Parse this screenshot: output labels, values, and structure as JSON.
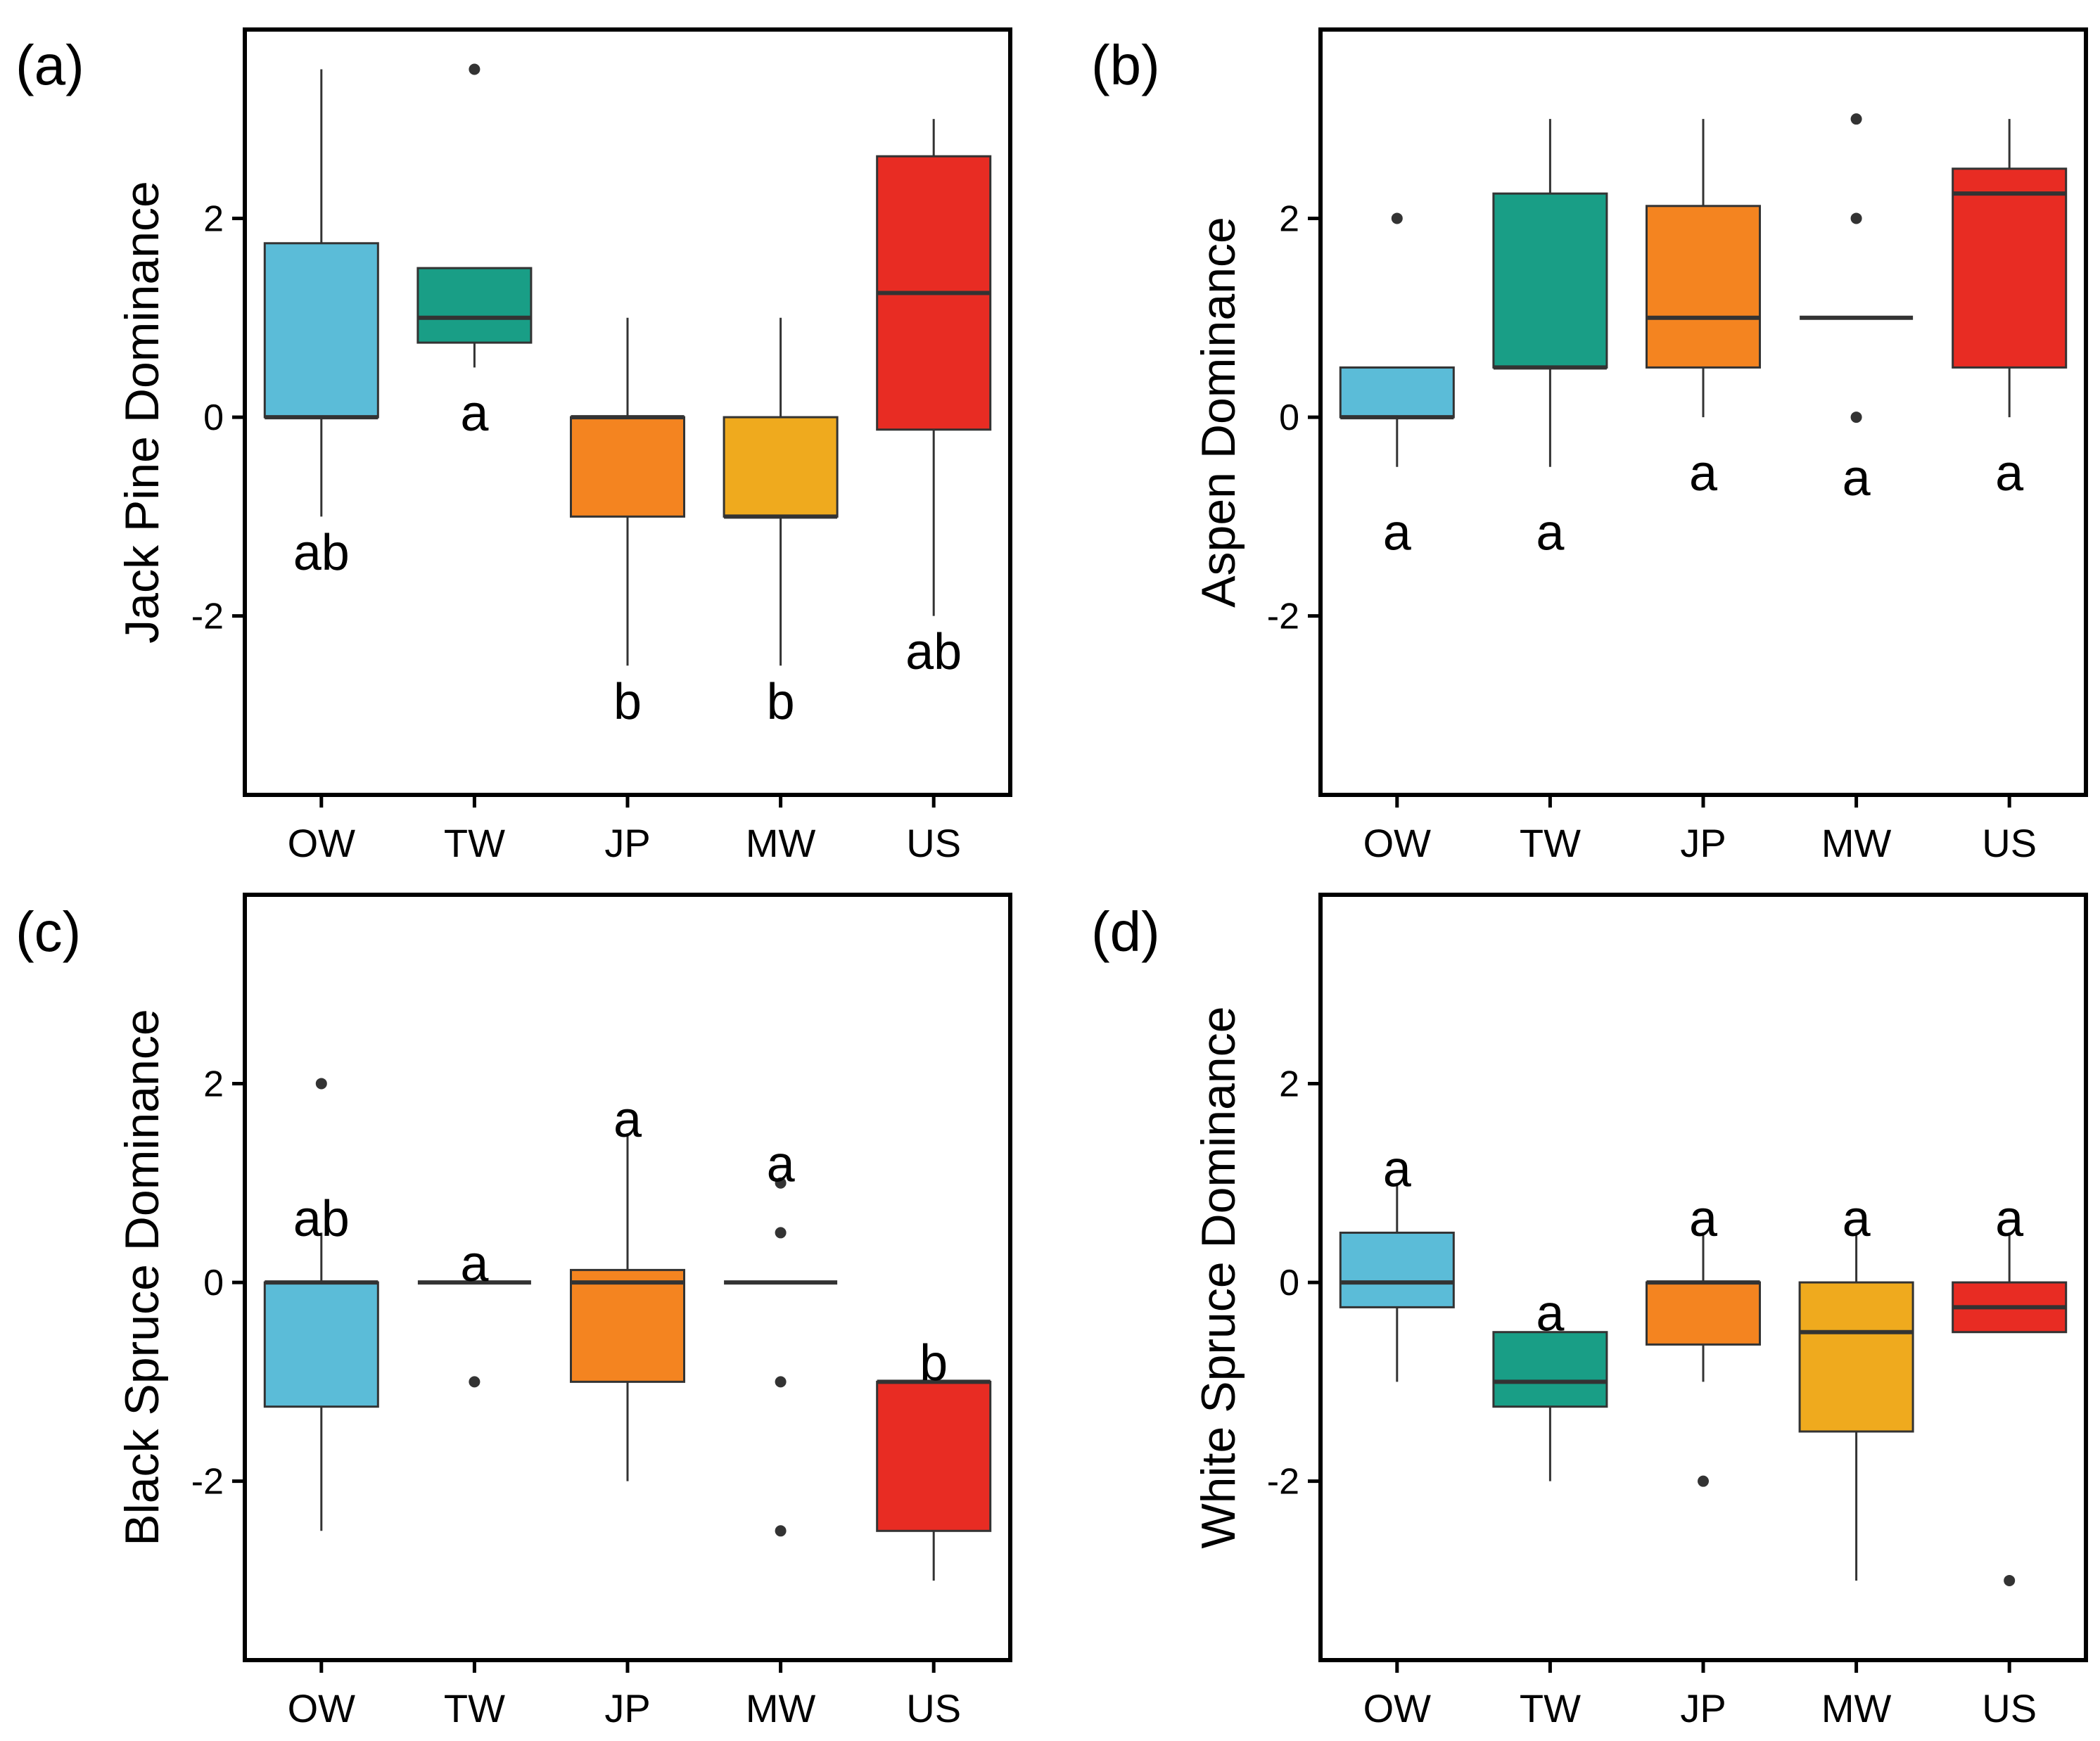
{
  "figure": {
    "categories": [
      "OW",
      "TW",
      "JP",
      "MW",
      "US"
    ],
    "colors": {
      "OW": "#5bbcd8",
      "TW": "#199e86",
      "JP": "#f48420",
      "MW": "#efaa1e",
      "US": "#e82c23"
    },
    "y_ticks": [
      -2,
      0,
      2
    ],
    "ylim": [
      -3.8,
      3.9
    ]
  },
  "chart_data": [
    {
      "panel": "(a)",
      "type": "box",
      "ylabel": "Jack Pine Dominance",
      "boxes": [
        {
          "category": "OW",
          "q1": 0,
          "median": 0,
          "q3": 1.75,
          "whisker_low": -1,
          "whisker_high": 3.5,
          "outliers": [],
          "letter": "ab",
          "letter_y": -1.35
        },
        {
          "category": "TW",
          "q1": 0.75,
          "median": 1,
          "q3": 1.5,
          "whisker_low": 0.5,
          "whisker_high": 1.5,
          "outliers": [
            3.5
          ],
          "letter": "a",
          "letter_y": 0.05
        },
        {
          "category": "JP",
          "q1": -1,
          "median": 0,
          "q3": 0,
          "whisker_low": -2.5,
          "whisker_high": 1,
          "outliers": [],
          "letter": "b",
          "letter_y": -2.85
        },
        {
          "category": "MW",
          "q1": -1,
          "median": -1,
          "q3": 0,
          "whisker_low": -2.5,
          "whisker_high": 1,
          "outliers": [],
          "letter": "b",
          "letter_y": -2.85
        },
        {
          "category": "US",
          "q1": -0.125,
          "median": 1.25,
          "q3": 2.625,
          "whisker_low": -2,
          "whisker_high": 3,
          "outliers": [],
          "letter": "ab",
          "letter_y": -2.35
        }
      ]
    },
    {
      "panel": "(b)",
      "type": "box",
      "ylabel": "Aspen Dominance",
      "boxes": [
        {
          "category": "OW",
          "q1": 0,
          "median": 0,
          "q3": 0.5,
          "whisker_low": -0.5,
          "whisker_high": 0.5,
          "outliers": [
            2
          ],
          "letter": "a",
          "letter_y": -1.15
        },
        {
          "category": "TW",
          "q1": 0.5,
          "median": 0.5,
          "q3": 2.25,
          "whisker_low": -0.5,
          "whisker_high": 3,
          "outliers": [],
          "letter": "a",
          "letter_y": -1.15
        },
        {
          "category": "JP",
          "q1": 0.5,
          "median": 1,
          "q3": 2.125,
          "whisker_low": 0,
          "whisker_high": 3,
          "outliers": [],
          "letter": "a",
          "letter_y": -0.55
        },
        {
          "category": "MW",
          "q1": 1,
          "median": 1,
          "q3": 1,
          "whisker_low": 1,
          "whisker_high": 1,
          "outliers": [
            3,
            2,
            0
          ],
          "letter": "a",
          "letter_y": -0.6
        },
        {
          "category": "US",
          "q1": 0.5,
          "median": 2.25,
          "q3": 2.5,
          "whisker_low": 0,
          "whisker_high": 3,
          "outliers": [],
          "letter": "a",
          "letter_y": -0.55
        }
      ]
    },
    {
      "panel": "(c)",
      "type": "box",
      "ylabel": "Black Spruce Dominance",
      "boxes": [
        {
          "category": "OW",
          "q1": -1.25,
          "median": 0,
          "q3": 0,
          "whisker_low": -2.5,
          "whisker_high": 0.5,
          "outliers": [
            2
          ],
          "letter": "ab",
          "letter_y": 0.65
        },
        {
          "category": "TW",
          "q1": 0,
          "median": 0,
          "q3": 0,
          "whisker_low": 0,
          "whisker_high": 0,
          "outliers": [
            -1
          ],
          "letter": "a",
          "letter_y": 0.2
        },
        {
          "category": "JP",
          "q1": -1,
          "median": 0,
          "q3": 0.125,
          "whisker_low": -2,
          "whisker_high": 1.5,
          "outliers": [],
          "letter": "a",
          "letter_y": 1.65
        },
        {
          "category": "MW",
          "q1": 0,
          "median": 0,
          "q3": 0,
          "whisker_low": 0,
          "whisker_high": 0,
          "outliers": [
            1,
            0.5,
            -1,
            -2.5
          ],
          "letter": "a",
          "letter_y": 1.2
        },
        {
          "category": "US",
          "q1": -2.5,
          "median": -1,
          "q3": -1,
          "whisker_low": -3,
          "whisker_high": -1,
          "outliers": [],
          "letter": "b",
          "letter_y": -0.8
        }
      ]
    },
    {
      "panel": "(d)",
      "type": "box",
      "ylabel": "White Spruce Dominance",
      "boxes": [
        {
          "category": "OW",
          "q1": -0.25,
          "median": 0,
          "q3": 0.5,
          "whisker_low": -1,
          "whisker_high": 1,
          "outliers": [],
          "letter": "a",
          "letter_y": 1.15
        },
        {
          "category": "TW",
          "q1": -1.25,
          "median": -1,
          "q3": -0.5,
          "whisker_low": -2,
          "whisker_high": -0.5,
          "outliers": [],
          "letter": "a",
          "letter_y": -0.3
        },
        {
          "category": "JP",
          "q1": -0.625,
          "median": 0,
          "q3": 0,
          "whisker_low": -1,
          "whisker_high": 0.5,
          "outliers": [
            -2
          ],
          "letter": "a",
          "letter_y": 0.65
        },
        {
          "category": "MW",
          "q1": -1.5,
          "median": -0.5,
          "q3": 0,
          "whisker_low": -3,
          "whisker_high": 0.5,
          "outliers": [],
          "letter": "a",
          "letter_y": 0.65
        },
        {
          "category": "US",
          "q1": -0.5,
          "median": -0.25,
          "q3": 0,
          "whisker_low": -0.5,
          "whisker_high": 0.5,
          "outliers": [
            -3
          ],
          "letter": "a",
          "letter_y": 0.65
        }
      ]
    }
  ]
}
